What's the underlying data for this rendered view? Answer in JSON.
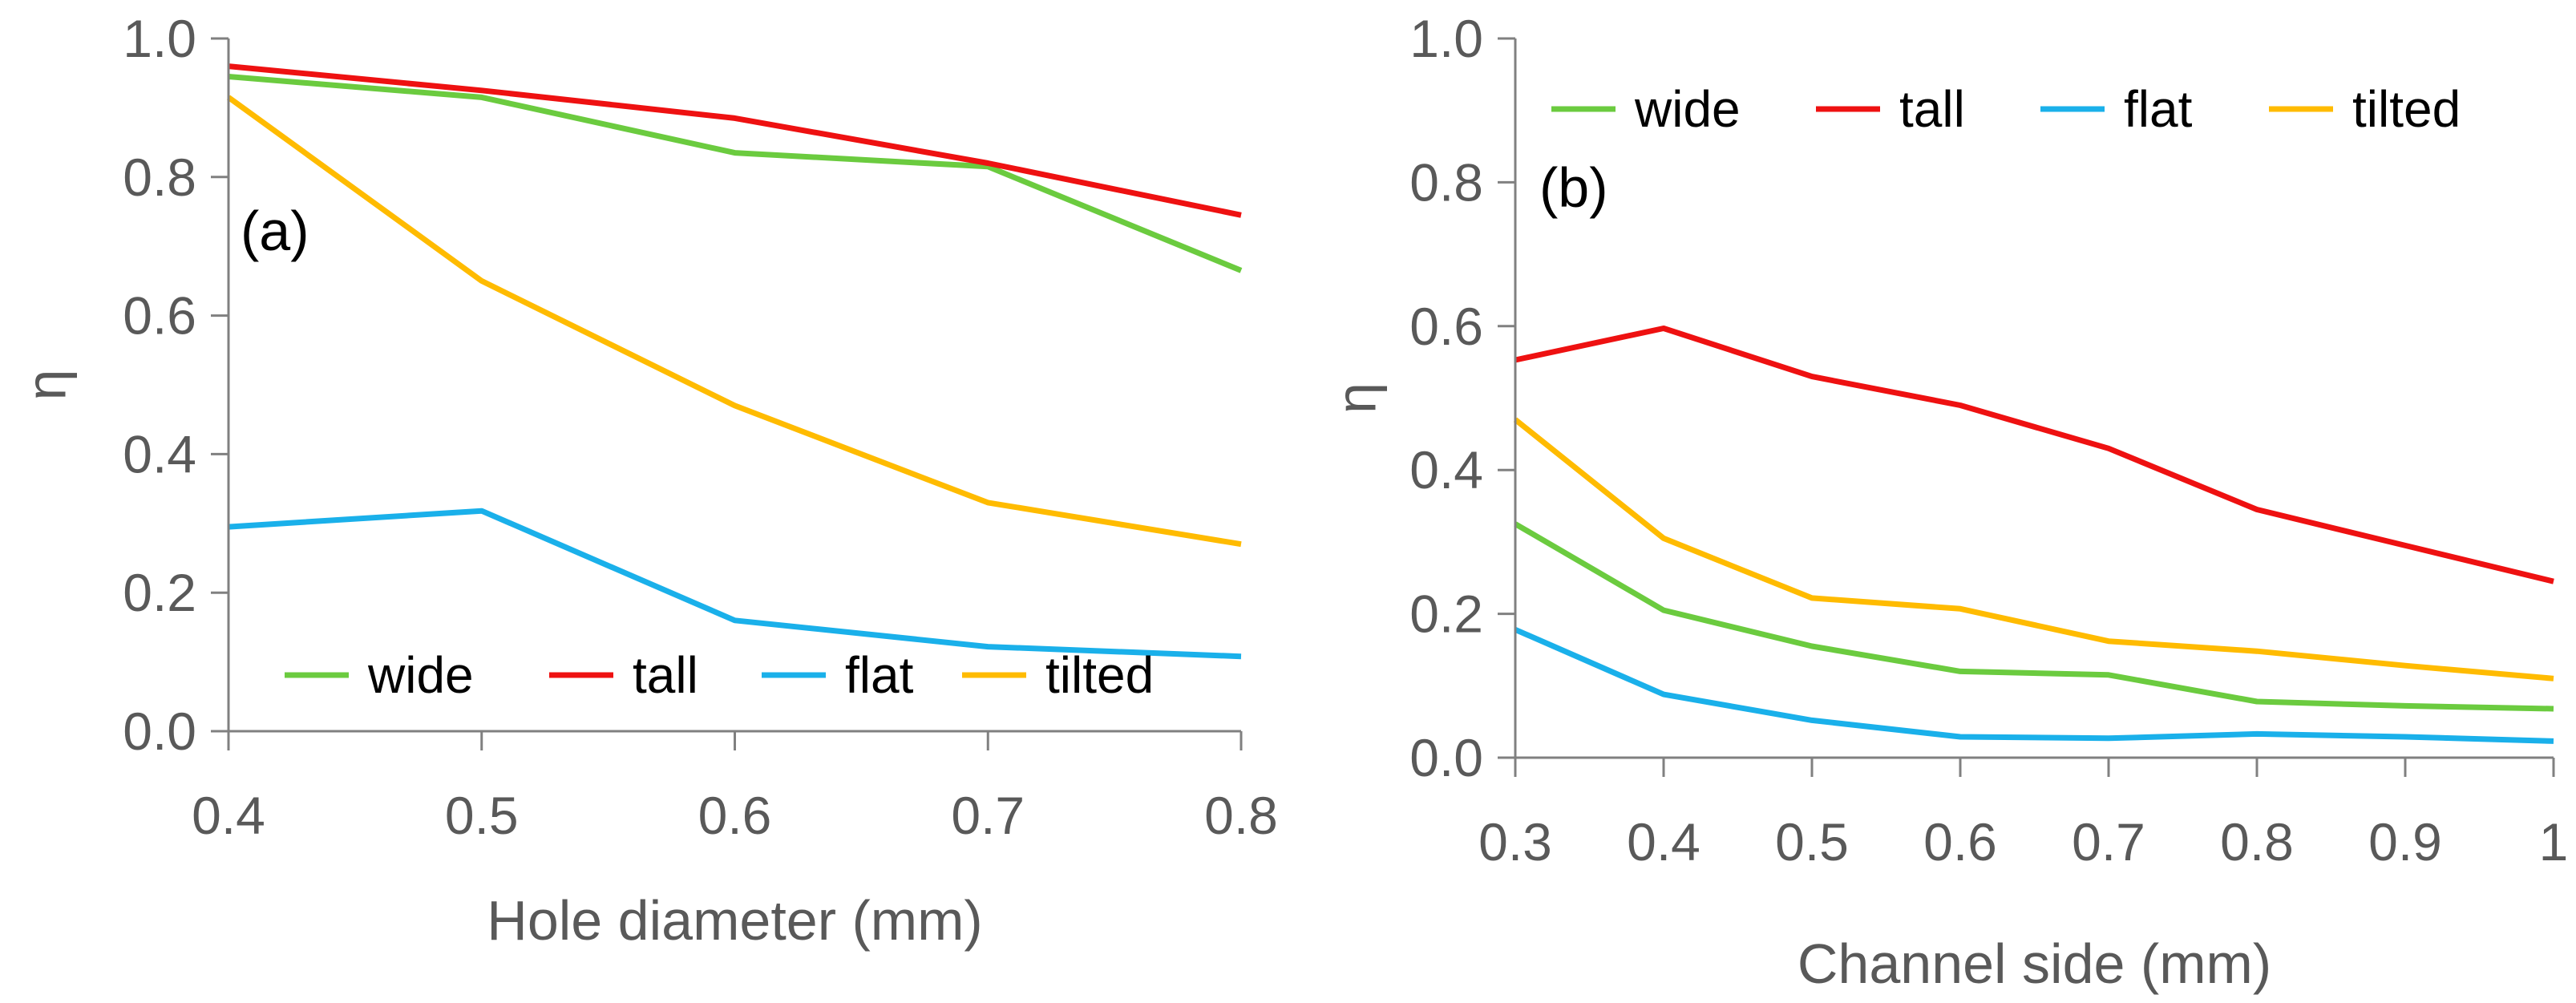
{
  "colors": {
    "wide": "#6BCB3F",
    "tall": "#EE1111",
    "flat": "#1AB0EA",
    "tilted": "#FFBB00",
    "axis": "#808080",
    "text": "#595959"
  },
  "chart_data": [
    {
      "type": "line",
      "panel_label": "(a)",
      "xlabel": "Hole diameter (mm)",
      "ylabel": "η",
      "xlim": [
        0.4,
        0.8
      ],
      "ylim": [
        0.0,
        1.0
      ],
      "xticks": [
        0.4,
        0.5,
        0.6,
        0.7,
        0.8
      ],
      "xtick_labels": [
        "0.4",
        "0.5",
        "0.6",
        "0.7",
        "0.8"
      ],
      "yticks": [
        0.0,
        0.2,
        0.4,
        0.6,
        0.8,
        1.0
      ],
      "ytick_labels": [
        "0.0",
        "0.2",
        "0.4",
        "0.6",
        "0.8",
        "1.0"
      ],
      "legend_position": "bottom",
      "x": [
        0.4,
        0.5,
        0.6,
        0.7,
        0.8
      ],
      "series": [
        {
          "name": "wide",
          "values": [
            0.945,
            0.915,
            0.835,
            0.815,
            0.665
          ]
        },
        {
          "name": "tall",
          "values": [
            0.96,
            0.925,
            0.885,
            0.82,
            0.745
          ]
        },
        {
          "name": "flat",
          "values": [
            0.295,
            0.318,
            0.16,
            0.122,
            0.108
          ]
        },
        {
          "name": "tilted",
          "values": [
            0.915,
            0.65,
            0.47,
            0.33,
            0.27
          ]
        }
      ]
    },
    {
      "type": "line",
      "panel_label": "(b)",
      "xlabel": "Channel side (mm)",
      "ylabel": "η",
      "xlim": [
        0.3,
        1.0
      ],
      "ylim": [
        0.0,
        1.0
      ],
      "xticks": [
        0.3,
        0.4,
        0.5,
        0.6,
        0.7,
        0.8,
        0.9,
        1.0
      ],
      "xtick_labels": [
        "0.3",
        "0.4",
        "0.5",
        "0.6",
        "0.7",
        "0.8",
        "0.9",
        "1"
      ],
      "yticks": [
        0.0,
        0.2,
        0.4,
        0.6,
        0.8,
        1.0
      ],
      "ytick_labels": [
        "0.0",
        "0.2",
        "0.4",
        "0.6",
        "0.8",
        "1.0"
      ],
      "legend_position": "top",
      "x": [
        0.3,
        0.4,
        0.5,
        0.6,
        0.7,
        0.8,
        0.9,
        1.0
      ],
      "series": [
        {
          "name": "wide",
          "values": [
            0.325,
            0.205,
            0.155,
            0.12,
            0.115,
            0.078,
            0.072,
            0.068
          ]
        },
        {
          "name": "tall",
          "values": [
            0.553,
            0.597,
            0.53,
            0.49,
            0.43,
            0.345,
            0.295,
            0.245
          ]
        },
        {
          "name": "flat",
          "values": [
            0.178,
            0.088,
            0.052,
            0.029,
            0.027,
            0.033,
            0.029,
            0.023
          ]
        },
        {
          "name": "tilted",
          "values": [
            0.47,
            0.305,
            0.222,
            0.207,
            0.162,
            0.148,
            0.128,
            0.11
          ]
        }
      ]
    }
  ]
}
